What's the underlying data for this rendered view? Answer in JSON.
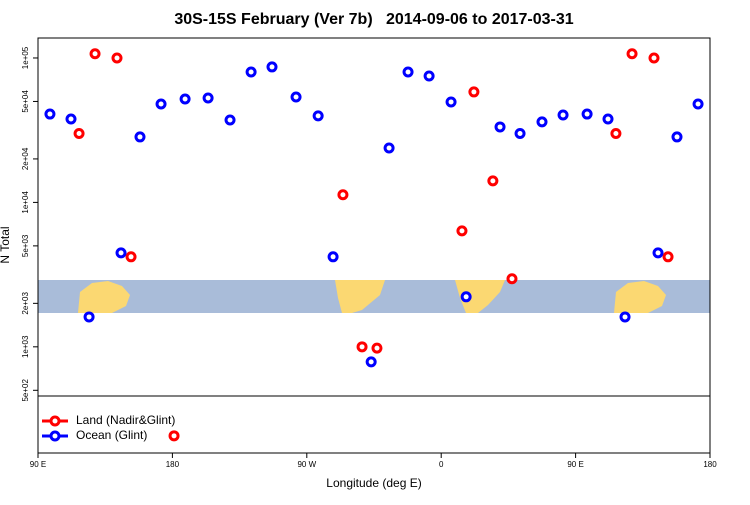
{
  "chart_data": {
    "type": "scatter",
    "title": "30S-15S February (Ver 7b)   2014-09-06 to 2017-03-31",
    "xlabel": "Longitude (deg E)",
    "ylabel": "N Total",
    "xlim": [
      90,
      540
    ],
    "xticks": [
      {
        "value": 90,
        "label": "90 E"
      },
      180,
      {
        "value": 270,
        "label": "90 W"
      },
      {
        "value": 360,
        "label": "0"
      },
      {
        "value": 450,
        "label": "90 E"
      },
      {
        "value": 540,
        "label": "180"
      }
    ],
    "ylim": [
      184,
      137500
    ],
    "log_y": true,
    "yticks": [
      {
        "value": 500,
        "label": "5e+02"
      },
      {
        "value": 1000,
        "label": "1e+03"
      },
      {
        "value": 2000,
        "label": "2e+03"
      },
      {
        "value": 5000,
        "label": "5e+03"
      },
      {
        "value": 10000,
        "label": "1e+04"
      },
      {
        "value": 20000,
        "label": "2e+04"
      },
      {
        "value": 50000,
        "label": "5e+04"
      },
      {
        "value": 100000,
        "label": "1e+05"
      }
    ],
    "legend": "bottom-left",
    "series": [
      {
        "name": "Land (Nadir&Glint)",
        "color": "#ff0000",
        "x": [
          117.5,
          128.2,
          142.9,
          152.3,
          181.1,
          294.2,
          307,
          317,
          373.9,
          381.9,
          394.6,
          407.4,
          477,
          487.8,
          502.5,
          511.9
        ],
        "values": [
          30000,
          107000,
          100000,
          4200,
          242,
          11300,
          1000,
          980,
          6350,
          58200,
          14100,
          2960,
          30000,
          107000,
          100000,
          4200
        ]
      },
      {
        "name": "Ocean (Glint)",
        "color": "#0000ff",
        "x": [
          98,
          112.1,
          124.2,
          145.6,
          158.3,
          172.4,
          188.5,
          203.9,
          218.6,
          232.7,
          246.7,
          262.8,
          277.6,
          287.6,
          313.1,
          325.1,
          337.8,
          351.9,
          366.6,
          376.7,
          399.4,
          412.8,
          427.5,
          441.6,
          457.7,
          471.7,
          483.1,
          505.2,
          517.9,
          532
        ],
        "values": [
          40900,
          37800,
          1610,
          4470,
          28400,
          48000,
          52000,
          52800,
          37200,
          80000,
          86700,
          53700,
          39700,
          4200,
          787,
          23800,
          80000,
          75000,
          49600,
          2220,
          33300,
          30000,
          36100,
          40300,
          40900,
          37800,
          1610,
          4470,
          28400,
          48000
        ]
      }
    ]
  }
}
